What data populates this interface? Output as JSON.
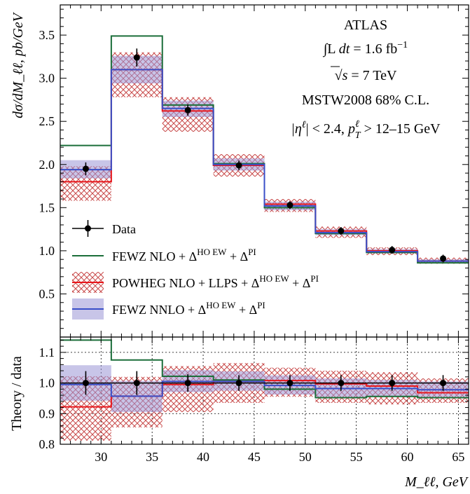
{
  "chart_data": [
    {
      "panel": "main",
      "type": "line",
      "ylabel": "dσ/dM_ℓℓ, pb/GeV",
      "xlim": [
        26,
        66
      ],
      "ylim": [
        0,
        3.85
      ],
      "yticks": [
        0.5,
        1.0,
        1.5,
        2.0,
        2.5,
        3.0,
        3.5
      ],
      "ytick_labels": [
        "0.5",
        "1.0",
        "1.5",
        "2.0",
        "2.5",
        "3.0",
        "3.5"
      ],
      "bin_edges": [
        26,
        31,
        36,
        41,
        46,
        51,
        56,
        61,
        66
      ],
      "annotations": {
        "experiment": "ATLAS",
        "lumi_prefix": "∫L",
        "lumi_var": "dt",
        "lumi_value": " = 1.6 fb",
        "lumi_exp": "−1",
        "energy_prefix": "s",
        "energy_value": " = 7 TeV",
        "pdf": "MSTW2008 68% C.L.",
        "cuts_eta": "|η",
        "cuts_eta_sup": "ℓ",
        "cuts_mid": "| < 2.4, ",
        "cuts_pt": "p",
        "cuts_pt_sub": "T",
        "cuts_pt_sup": "ℓ",
        "cuts_tail": " > 12–15 GeV"
      },
      "legend": {
        "placement": "bottom-left",
        "entries": [
          {
            "label": "Data"
          },
          {
            "label": "FEWZ NLO + Δ",
            "sup": "HO EW",
            "tail": " + Δ",
            "sup2": "PI"
          },
          {
            "label": "POWHEG NLO + LLPS + Δ",
            "sup": "HO EW",
            "tail": " + Δ",
            "sup2": "PI"
          },
          {
            "label": "FEWZ NNLO + Δ",
            "sup": "HO EW",
            "tail": " + Δ",
            "sup2": "PI"
          }
        ]
      },
      "data_points": {
        "name": "Data",
        "x": [
          28.5,
          33.5,
          38.5,
          43.5,
          48.5,
          53.5,
          58.5,
          63.5
        ],
        "y": [
          1.95,
          3.24,
          2.63,
          1.99,
          1.53,
          1.23,
          1.01,
          0.91
        ],
        "yerr": [
          0.05,
          0.08,
          0.04,
          0.03,
          0.02,
          0.02,
          0.02,
          0.02
        ]
      },
      "series": [
        {
          "name": "FEWZ NLO + ΔHO EW + ΔPI",
          "color": "#1b6e3a",
          "values": [
            2.22,
            3.49,
            2.69,
            2.01,
            1.5,
            1.2,
            0.98,
            0.86
          ]
        },
        {
          "name": "POWHEG NLO + LLPS + ΔHO EW + ΔPI",
          "color": "#e8161b",
          "band_color": "#c84a4a",
          "values": [
            1.8,
            3.1,
            2.62,
            1.99,
            1.54,
            1.23,
            1.0,
            0.88
          ],
          "band_low": [
            1.58,
            2.78,
            2.38,
            1.86,
            1.45,
            1.15,
            0.95,
            0.85
          ],
          "band_high": [
            1.98,
            3.3,
            2.78,
            2.12,
            1.6,
            1.28,
            1.04,
            0.92
          ]
        },
        {
          "name": "FEWZ NNLO + ΔHO EW + ΔPI",
          "color": "#3a4fc8",
          "band_color": "#9b96d6",
          "values": [
            1.94,
            3.1,
            2.65,
            2.0,
            1.52,
            1.21,
            0.99,
            0.88
          ],
          "band_low": [
            1.84,
            2.94,
            2.55,
            1.93,
            1.47,
            1.18,
            0.97,
            0.86
          ],
          "band_high": [
            2.05,
            3.26,
            2.74,
            2.07,
            1.57,
            1.25,
            1.02,
            0.9
          ]
        }
      ]
    },
    {
      "panel": "ratio",
      "type": "line",
      "xlabel": "M_ℓℓ, GeV",
      "ylabel": "Theory / data",
      "xlim": [
        26,
        66
      ],
      "ylim": [
        0.8,
        1.15
      ],
      "xticks": [
        30,
        35,
        40,
        45,
        50,
        55,
        60,
        65
      ],
      "xtick_labels": [
        "30",
        "35",
        "40",
        "45",
        "50",
        "55",
        "60",
        "65"
      ],
      "yticks": [
        0.8,
        0.9,
        1.0,
        1.1
      ],
      "ytick_labels": [
        "0.8",
        "0.9",
        "1.0",
        "1.1"
      ],
      "grid": true,
      "bin_edges": [
        26,
        31,
        36,
        41,
        46,
        51,
        56,
        61,
        66
      ],
      "data_points": {
        "x": [
          28.5,
          33.5,
          38.5,
          43.5,
          48.5,
          53.5,
          58.5,
          63.5
        ],
        "y": [
          1.0,
          1.0,
          1.0,
          1.0,
          1.0,
          1.0,
          1.0,
          1.0
        ],
        "yerr": [
          0.025,
          0.025,
          0.015,
          0.012,
          0.012,
          0.012,
          0.012,
          0.012
        ]
      },
      "series": [
        {
          "name": "FEWZ NLO",
          "color": "#1b6e3a",
          "values": [
            1.14,
            1.075,
            1.022,
            1.01,
            0.98,
            0.952,
            0.956,
            0.952
          ]
        },
        {
          "name": "POWHEG NLO",
          "color": "#e8161b",
          "band_color": "#c84a4a",
          "values": [
            0.922,
            0.957,
            0.995,
            1.005,
            1.008,
            0.997,
            0.99,
            0.968
          ],
          "band_low": [
            0.812,
            0.855,
            0.905,
            0.935,
            0.955,
            0.935,
            0.93,
            0.935
          ],
          "band_high": [
            1.022,
            1.02,
            1.055,
            1.065,
            1.05,
            1.04,
            1.035,
            1.015
          ]
        },
        {
          "name": "FEWZ NNLO",
          "color": "#3a4fc8",
          "band_color": "#9b96d6",
          "values": [
            0.995,
            0.957,
            1.005,
            1.005,
            0.992,
            0.982,
            0.982,
            0.978
          ],
          "band_low": [
            0.942,
            0.905,
            0.97,
            0.975,
            0.962,
            0.955,
            0.955,
            0.955
          ],
          "band_high": [
            1.058,
            1.007,
            1.042,
            1.038,
            1.025,
            1.015,
            1.01,
            1.005
          ]
        }
      ]
    }
  ]
}
